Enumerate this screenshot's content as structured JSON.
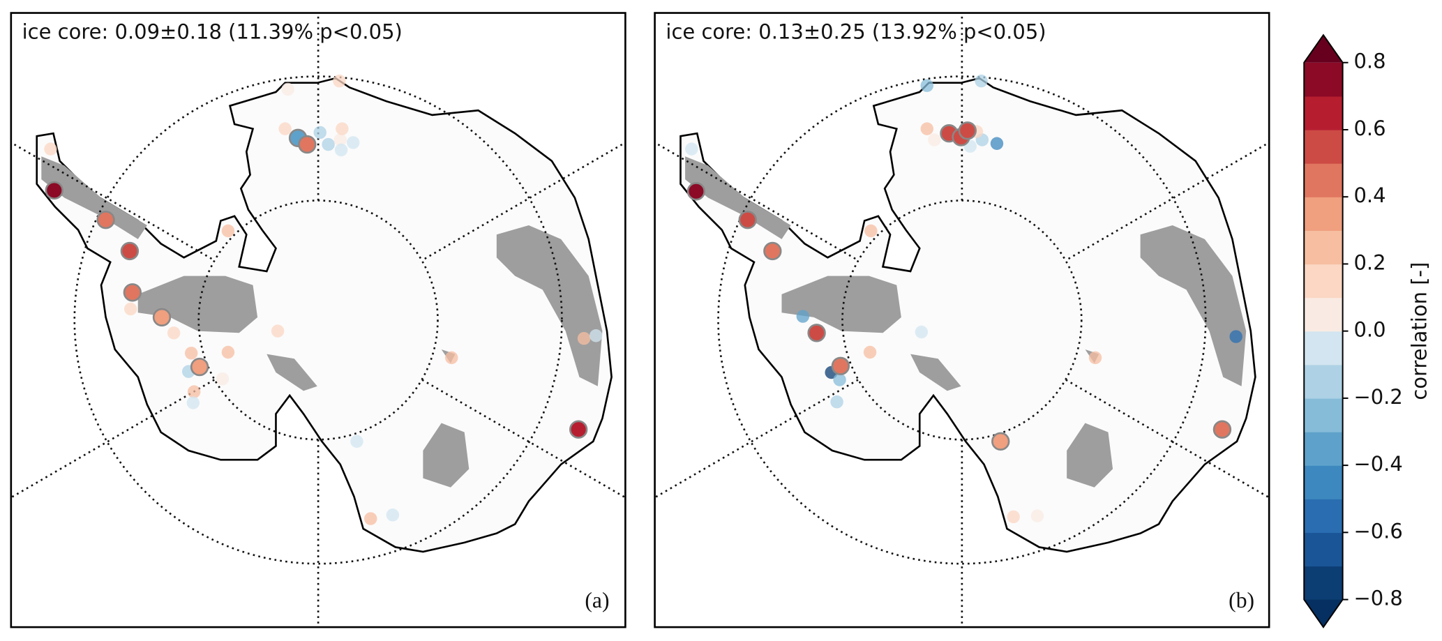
{
  "panels": [
    {
      "title": "ice core: 0.09±0.18 (11.39% p<0.05)",
      "label": "(a)",
      "points": [
        0.7,
        0.45,
        0.5,
        0.4,
        0.35,
        0.35,
        -0.35,
        0.4,
        0.65,
        0.15,
        0.2,
        0.15,
        0.1,
        0.25,
        0.2,
        -0.15,
        0.05,
        0.25,
        -0.1,
        0.1,
        0.25,
        0.2,
        -0.1,
        -0.1,
        -0.1,
        0.2,
        0.15,
        0.05,
        -0.1,
        -0.2,
        -0.1,
        -0.15,
        0.1,
        0.15,
        0.05
      ]
    },
    {
      "title": "ice core: 0.13±0.25 (13.92% p<0.05)",
      "label": "(b)",
      "points": [
        0.8,
        0.5,
        0.45,
        0.55,
        0.45,
        0.55,
        0.6,
        0.5,
        0.35,
        0.45,
        -0.05,
        0.2,
        -0.35,
        -0.75,
        -0.25,
        -0.2,
        0.2,
        -0.05,
        0.2,
        -0.6,
        -0.3,
        -0.2,
        -0.45,
        -0.2,
        0.05,
        0.2,
        0.15,
        -0.05,
        0.15,
        0.05
      ]
    }
  ],
  "colorbar": {
    "label": "correlation [-]",
    "lim": [
      -0.8,
      0.8
    ],
    "ticks": [
      {
        "value": -0.8,
        "label": "−0.8"
      },
      {
        "value": -0.6,
        "label": "−0.6"
      },
      {
        "value": -0.4,
        "label": "−0.4"
      },
      {
        "value": -0.2,
        "label": "−0.2"
      },
      {
        "value": 0,
        "label": "0.0"
      },
      0.2,
      0.4,
      0.6,
      0.8
    ],
    "colors": [
      "#0c3d73",
      "#1a5597",
      "#2a6db1",
      "#3c88bf",
      "#5ea2cb",
      "#87bcd9",
      "#aed1e5",
      "#d2e5f0",
      "#f9ebe3",
      "#fbd7c4",
      "#f7bea1",
      "#f09f7f",
      "#e0765f",
      "#cd4b45",
      "#b61e30",
      "#8c0a26"
    ],
    "extend_colors": [
      "#053061",
      "#67001f"
    ]
  }
}
